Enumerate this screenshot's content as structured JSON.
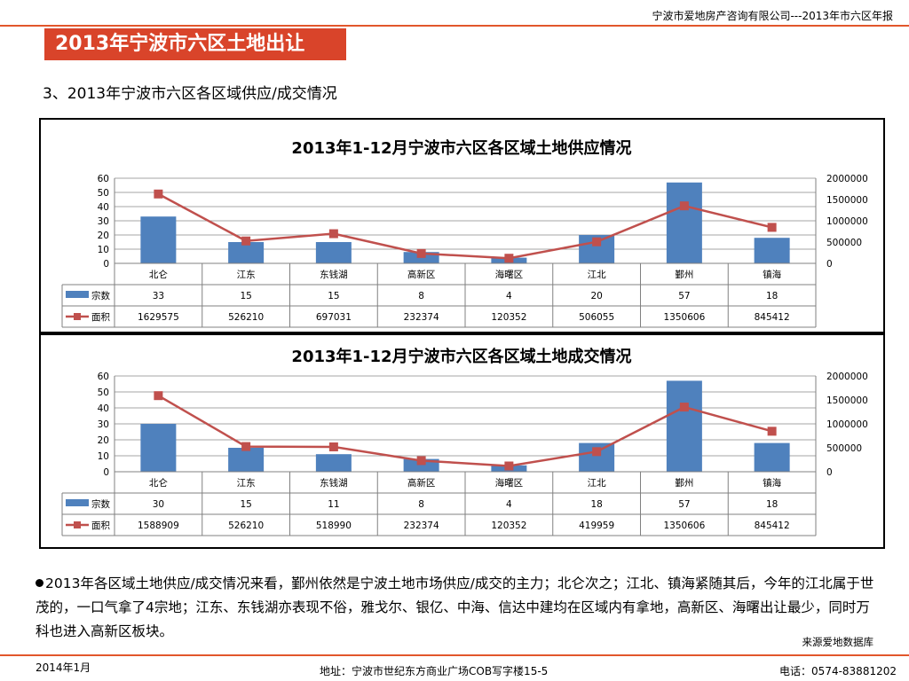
{
  "header": {
    "company": "宁波市爱地房产咨询有限公司---2013年市六区年报"
  },
  "page_title": "2013年宁波市六区土地出让",
  "subtitle": "3、2013年宁波市六区各区域供应/成交情况",
  "colors": {
    "accent": "#d9442a",
    "bar": "#4f81bd",
    "line": "#c0504d"
  },
  "chart_data": [
    {
      "type": "bar",
      "title": "2013年1-12月宁波市六区各区域土地供应情况",
      "categories": [
        "北仑",
        "江东",
        "东钱湖",
        "高新区",
        "海曙区",
        "江北",
        "鄞州",
        "镇海"
      ],
      "series": [
        {
          "name": "宗数",
          "type": "bar",
          "axis": "left",
          "values": [
            33,
            15,
            15,
            8,
            4,
            20,
            57,
            18
          ]
        },
        {
          "name": "面积",
          "type": "line",
          "axis": "right",
          "values": [
            1629575,
            526210,
            697031,
            232374,
            120352,
            506055,
            1350606,
            845412
          ]
        }
      ],
      "y_left": {
        "min": 0,
        "max": 60,
        "ticks": [
          "60",
          "50",
          "40",
          "30",
          "20",
          "10",
          "0"
        ]
      },
      "y_right": {
        "min": 0,
        "max": 2000000,
        "ticks": [
          "2000000",
          "1500000",
          "1000000",
          "500000",
          "0"
        ]
      },
      "grid": true,
      "legend": "data-table"
    },
    {
      "type": "bar",
      "title": "2013年1-12月宁波市六区各区域土地成交情况",
      "categories": [
        "北仑",
        "江东",
        "东钱湖",
        "高新区",
        "海曙区",
        "江北",
        "鄞州",
        "镇海"
      ],
      "series": [
        {
          "name": "宗数",
          "type": "bar",
          "axis": "left",
          "values": [
            30,
            15,
            11,
            8,
            4,
            18,
            57,
            18
          ]
        },
        {
          "name": "面积",
          "type": "line",
          "axis": "right",
          "values": [
            1588909,
            526210,
            518990,
            232374,
            120352,
            419959,
            1350606,
            845412
          ]
        }
      ],
      "y_left": {
        "min": 0,
        "max": 60,
        "ticks": [
          "60",
          "50",
          "40",
          "30",
          "20",
          "10",
          "0"
        ]
      },
      "y_right": {
        "min": 0,
        "max": 2000000,
        "ticks": [
          "2000000",
          "1500000",
          "1000000",
          "500000",
          "0"
        ]
      },
      "grid": true,
      "legend": "data-table"
    }
  ],
  "summary": "2013年各区域土地供应/成交情况来看，鄞州依然是宁波土地市场供应/成交的主力；北仑次之；江北、镇海紧随其后，今年的江北属于世茂的，一口气拿了4宗地；江东、东钱湖亦表现不俗，雅戈尔、银亿、中海、信达中建均在区域内有拿地，高新区、海曙出让最少，同时万科也进入高新区板块。",
  "source": "来源爱地数据库",
  "footer": {
    "date": "2014年1月",
    "address": "地址：宁波市世纪东方商业广场COB写字楼15-5",
    "phone": "电话：0574-83881202"
  }
}
